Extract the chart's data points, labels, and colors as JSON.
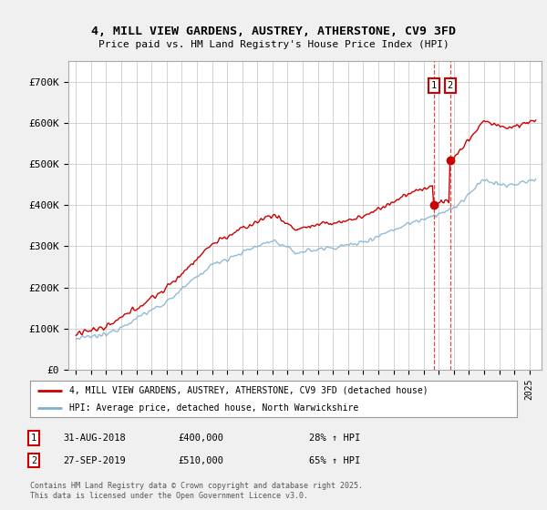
{
  "title": "4, MILL VIEW GARDENS, AUSTREY, ATHERSTONE, CV9 3FD",
  "subtitle": "Price paid vs. HM Land Registry's House Price Index (HPI)",
  "background_color": "#f0f0f0",
  "plot_bg_color": "#ffffff",
  "grid_color": "#cccccc",
  "red_color": "#cc0000",
  "blue_color": "#7fb0d0",
  "sale1_date": 2018.667,
  "sale1_price": 400000,
  "sale2_date": 2019.75,
  "sale2_price": 510000,
  "legend_label1": "4, MILL VIEW GARDENS, AUSTREY, ATHERSTONE, CV9 3FD (detached house)",
  "legend_label2": "HPI: Average price, detached house, North Warwickshire",
  "annotation1": "1",
  "annotation2": "2",
  "note1_date": "31-AUG-2018",
  "note1_price": "£400,000",
  "note1_hpi": "28% ↑ HPI",
  "note2_date": "27-SEP-2019",
  "note2_price": "£510,000",
  "note2_hpi": "65% ↑ HPI",
  "footer": "Contains HM Land Registry data © Crown copyright and database right 2025.\nThis data is licensed under the Open Government Licence v3.0.",
  "ylim_max": 750000,
  "xlim_start": 1994.5,
  "xlim_end": 2025.8
}
